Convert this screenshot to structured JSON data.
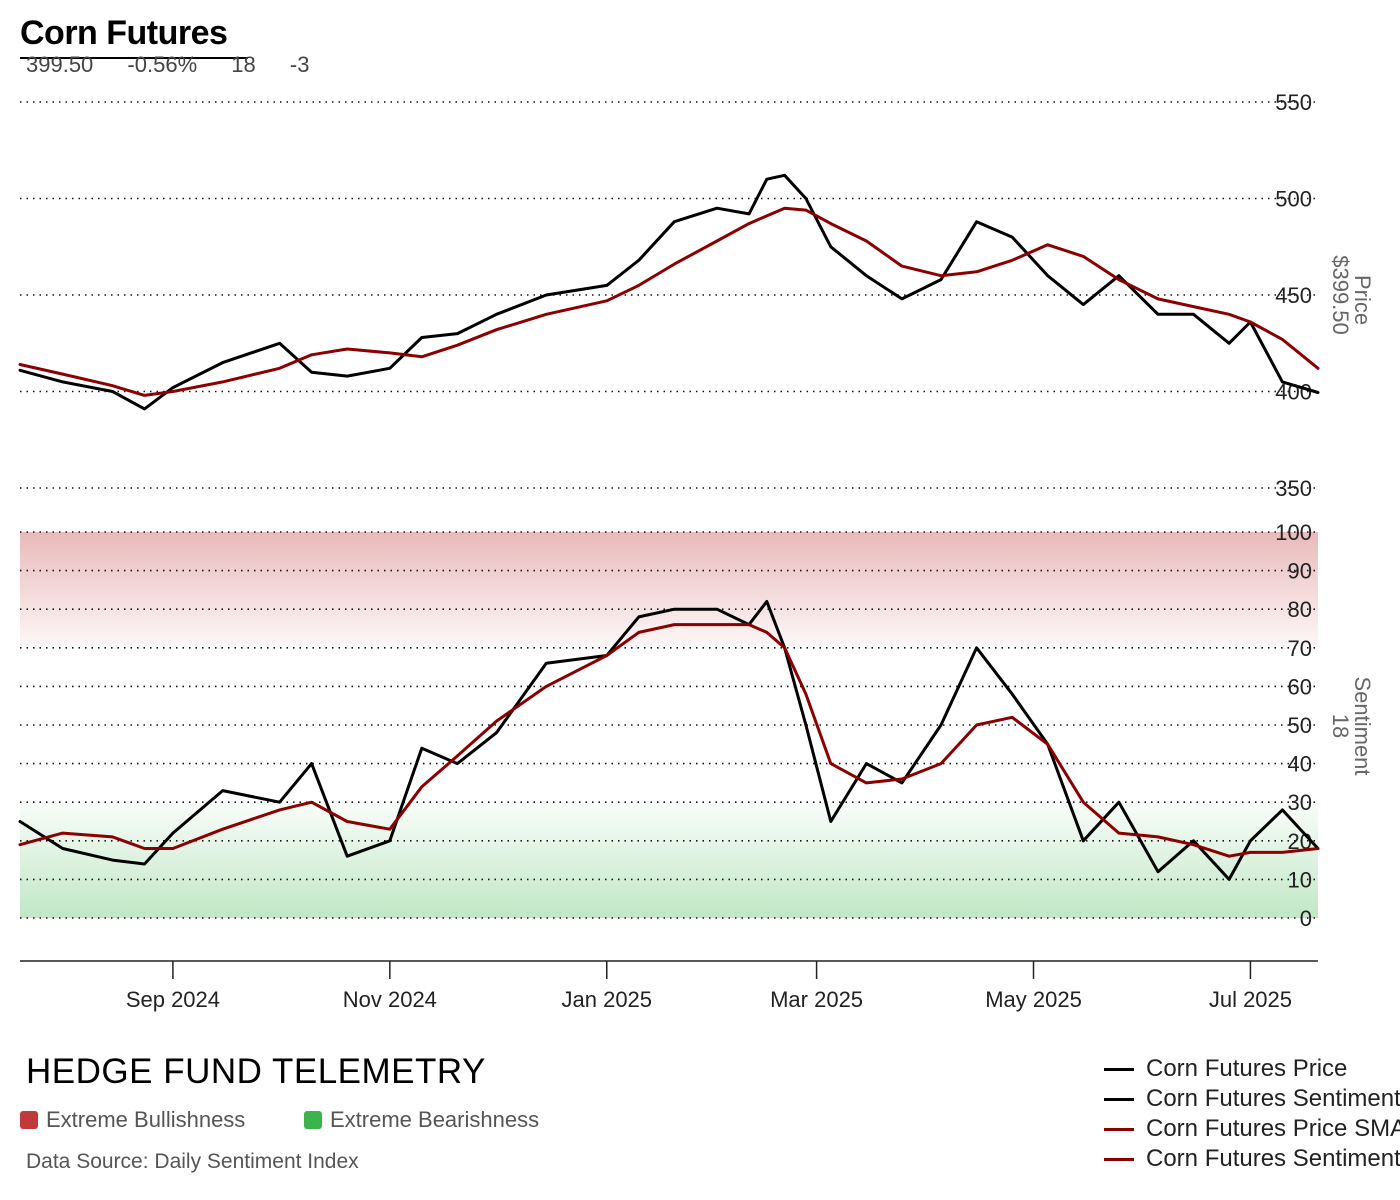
{
  "header": {
    "title": "Corn Futures",
    "stats": [
      "399.50",
      "-0.56%",
      "18",
      "-3"
    ]
  },
  "price_panel": {
    "y_ticks": [
      "550",
      "500",
      "450",
      "400",
      "350"
    ],
    "axis_title": "Price",
    "axis_value": "$399.50"
  },
  "sentiment_panel": {
    "y_ticks": [
      "100",
      "90",
      "80",
      "70",
      "60",
      "50",
      "40",
      "30",
      "20",
      "10",
      "0"
    ],
    "axis_title": "Sentiment",
    "axis_value": "18"
  },
  "x_ticks": [
    "Sep 2024",
    "Nov 2024",
    "Jan 2025",
    "Mar 2025",
    "May 2025",
    "Jul 2025"
  ],
  "footer": {
    "brand": "HEDGE FUND TELEMETRY",
    "key_bullish": "Extreme Bullishness",
    "key_bearish": "Extreme Bearishness",
    "source": "Data Source: Daily Sentiment Index"
  },
  "legend": [
    {
      "label": "Corn Futures Price",
      "color": "#000000"
    },
    {
      "label": "Corn Futures Sentiment",
      "color": "#000000"
    },
    {
      "label": "Corn Futures Price SMA",
      "color": "#8b0000"
    },
    {
      "label": "Corn Futures Sentiment SMA",
      "color": "#8b0000"
    }
  ],
  "colors": {
    "bullish_zone": "#c0393b",
    "bearish_zone": "#3cb44b",
    "price_line": "#000000",
    "sma_line": "#8b0000"
  },
  "chart_data": [
    {
      "type": "line",
      "panel": "price",
      "x": [
        "2024-07-20",
        "2024-08-01",
        "2024-08-15",
        "2024-08-24",
        "2024-09-01",
        "2024-09-15",
        "2024-10-01",
        "2024-10-10",
        "2024-10-20",
        "2024-11-01",
        "2024-11-10",
        "2024-11-20",
        "2024-12-01",
        "2024-12-15",
        "2025-01-01",
        "2025-01-10",
        "2025-01-20",
        "2025-02-01",
        "2025-02-10",
        "2025-02-15",
        "2025-02-20",
        "2025-02-26",
        "2025-03-05",
        "2025-03-15",
        "2025-03-25",
        "2025-04-05",
        "2025-04-15",
        "2025-04-25",
        "2025-05-05",
        "2025-05-15",
        "2025-05-25",
        "2025-06-05",
        "2025-06-15",
        "2025-06-25",
        "2025-07-01",
        "2025-07-10",
        "2025-07-20"
      ],
      "series": [
        {
          "name": "Corn Futures Price",
          "values": [
            411,
            405,
            400,
            391,
            402,
            415,
            425,
            410,
            408,
            412,
            428,
            430,
            440,
            450,
            455,
            468,
            488,
            495,
            492,
            510,
            512,
            500,
            475,
            460,
            448,
            458,
            488,
            480,
            460,
            445,
            460,
            440,
            440,
            425,
            436,
            405,
            399.5
          ]
        },
        {
          "name": "Corn Futures Price SMA",
          "values": [
            414,
            409,
            403,
            398,
            400,
            405,
            412,
            419,
            422,
            420,
            418,
            424,
            432,
            440,
            447,
            455,
            466,
            478,
            487,
            491,
            495,
            494,
            487,
            478,
            465,
            460,
            462,
            468,
            476,
            470,
            458,
            448,
            444,
            440,
            436,
            427,
            412
          ]
        }
      ],
      "ylim": [
        350,
        550
      ],
      "ylabel": "Price"
    },
    {
      "type": "line",
      "panel": "sentiment",
      "x": [
        "2024-07-20",
        "2024-08-01",
        "2024-08-15",
        "2024-08-24",
        "2024-09-01",
        "2024-09-15",
        "2024-10-01",
        "2024-10-10",
        "2024-10-20",
        "2024-11-01",
        "2024-11-10",
        "2024-11-20",
        "2024-12-01",
        "2024-12-15",
        "2025-01-01",
        "2025-01-10",
        "2025-01-20",
        "2025-02-01",
        "2025-02-10",
        "2025-02-15",
        "2025-02-20",
        "2025-02-26",
        "2025-03-05",
        "2025-03-15",
        "2025-03-25",
        "2025-04-05",
        "2025-04-15",
        "2025-04-25",
        "2025-05-05",
        "2025-05-15",
        "2025-05-25",
        "2025-06-05",
        "2025-06-15",
        "2025-06-25",
        "2025-07-01",
        "2025-07-10",
        "2025-07-20"
      ],
      "series": [
        {
          "name": "Corn Futures Sentiment",
          "values": [
            25,
            18,
            15,
            14,
            22,
            33,
            30,
            40,
            16,
            20,
            44,
            40,
            48,
            66,
            68,
            78,
            80,
            80,
            76,
            82,
            70,
            50,
            25,
            40,
            35,
            50,
            70,
            58,
            45,
            20,
            30,
            12,
            20,
            10,
            20,
            28,
            18
          ]
        },
        {
          "name": "Corn Futures Sentiment SMA",
          "values": [
            19,
            22,
            21,
            18,
            18,
            23,
            28,
            30,
            25,
            23,
            34,
            42,
            51,
            60,
            68,
            74,
            76,
            76,
            76,
            74,
            70,
            58,
            40,
            35,
            36,
            40,
            50,
            52,
            45,
            30,
            22,
            21,
            19,
            16,
            17,
            17,
            18
          ]
        }
      ],
      "ylim": [
        0,
        100
      ],
      "ylabel": "Sentiment"
    }
  ]
}
